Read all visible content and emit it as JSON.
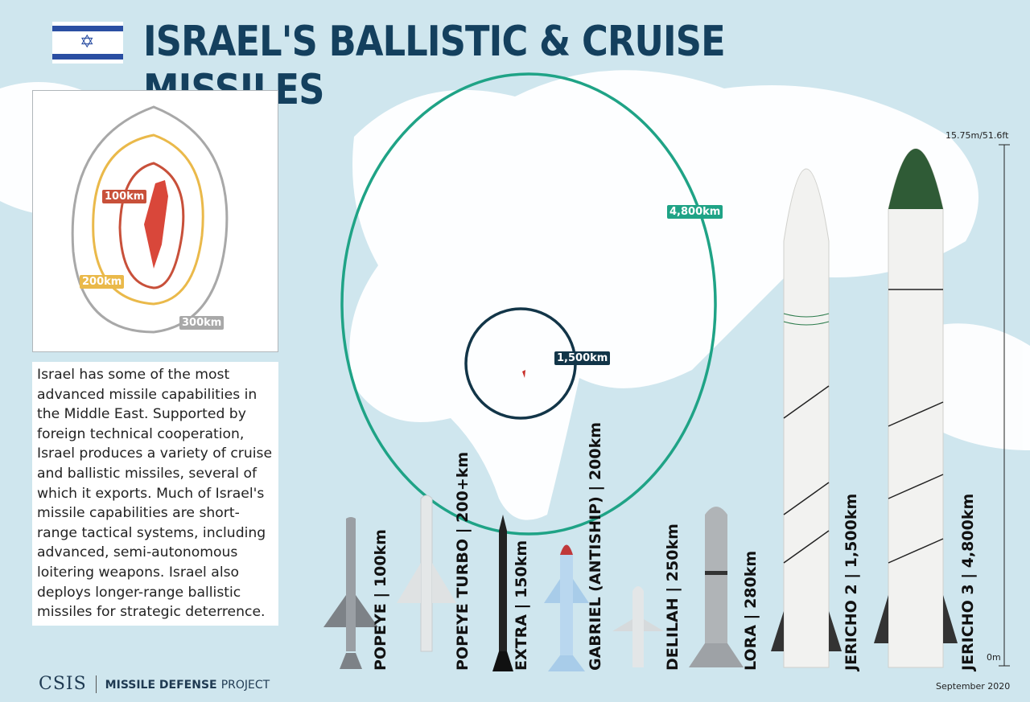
{
  "title": "ISRAEL'S BALLISTIC & CRUISE MISSILES",
  "flag": {
    "colors": {
      "blue": "#2a4ea2",
      "white": "#ffffff"
    },
    "icon": "star-of-david-icon"
  },
  "inset": {
    "rings": [
      {
        "label": "100km",
        "color": "#c8503a"
      },
      {
        "label": "200km",
        "color": "#eab94a"
      },
      {
        "label": "300km",
        "color": "#a8a8a8"
      }
    ]
  },
  "map_rings": [
    {
      "label": "4,800km",
      "color": "#1fa386"
    },
    {
      "label": "1,500km",
      "color": "#123548"
    }
  ],
  "description": "Israel has some of the most advanced missile capabilities in the Middle East. Supported by foreign technical cooperation, Israel produces a variety of cruise and ballistic missiles, several of which it exports. Much of Israel's missile capabilities are short-range tactical systems, including advanced, semi-autonomous loitering weapons. Israel also deploys longer-range ballistic missiles for strategic deterrence.",
  "missiles": [
    {
      "label": "POPEYE | 100km"
    },
    {
      "label": "POPEYE TURBO | 200+km"
    },
    {
      "label": "EXTRA | 150km"
    },
    {
      "label": "GABRIEL (ANTISHIP) | 200km"
    },
    {
      "label": "DELILAH | 250km"
    },
    {
      "label": "LORA | 280km"
    },
    {
      "label": "JERICHO 2 | 1,500km"
    },
    {
      "label": "JERICHO 3 | 4,800km"
    }
  ],
  "scale": {
    "top": "15.75m/51.6ft",
    "bottom": "0m"
  },
  "footer": {
    "org": "CSIS",
    "project_bold": "MISSILE DEFENSE",
    "project": "PROJECT",
    "date": "September 2020"
  }
}
